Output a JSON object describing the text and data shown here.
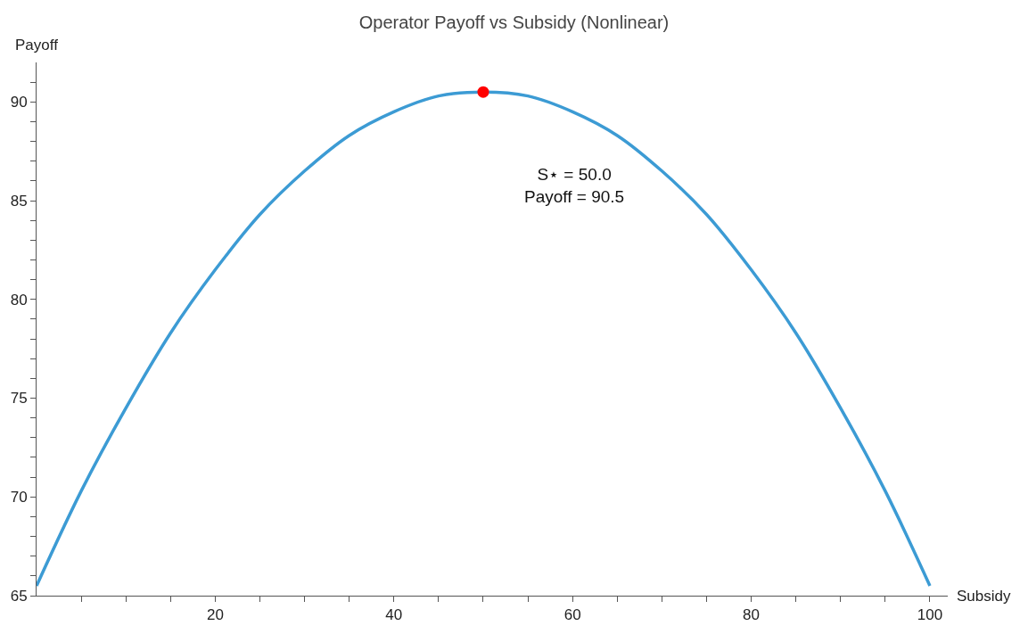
{
  "chart_data": {
    "type": "line",
    "title": "Operator Payoff vs Subsidy (Nonlinear)",
    "xlabel": "Subsidy",
    "ylabel": "Payoff",
    "x": [
      0,
      5,
      10,
      15,
      20,
      25,
      30,
      35,
      40,
      45,
      50,
      55,
      60,
      65,
      70,
      75,
      80,
      85,
      90,
      95,
      100
    ],
    "series": [
      {
        "color": "#3c9bd4",
        "values": [
          65.5,
          70.3,
          74.5,
          78.3,
          81.5,
          84.3,
          86.5,
          88.3,
          89.5,
          90.3,
          90.5,
          90.3,
          89.5,
          88.3,
          86.5,
          84.3,
          81.5,
          78.3,
          74.5,
          70.3,
          65.5
        ]
      },
      {
        "type": "scatter",
        "color": "#ff0000",
        "x": [
          50
        ],
        "values": [
          90.5
        ],
        "marker": "circle"
      }
    ],
    "annotations": [
      "S⋆ = 50.0\nPayoff = 90.5"
    ],
    "xlim": [
      0,
      102
    ],
    "ylim": [
      65,
      92
    ],
    "xticks": [
      {
        "value": 5,
        "label": null
      },
      {
        "value": 10,
        "label": null
      },
      {
        "value": 15,
        "label": null
      },
      20,
      {
        "value": 25,
        "label": null
      },
      {
        "value": 30,
        "label": null
      },
      {
        "value": 35,
        "label": null
      },
      40,
      {
        "value": 45,
        "label": null
      },
      {
        "value": 50,
        "label": null
      },
      {
        "value": 55,
        "label": null
      },
      60,
      {
        "value": 65,
        "label": null
      },
      {
        "value": 70,
        "label": null
      },
      {
        "value": 75,
        "label": null
      },
      80,
      {
        "value": 85,
        "label": null
      },
      {
        "value": 90,
        "label": null
      },
      {
        "value": 95,
        "label": null
      },
      100
    ],
    "yticks": [
      65,
      {
        "value": 66,
        "label": null
      },
      {
        "value": 67,
        "label": null
      },
      {
        "value": 68,
        "label": null
      },
      {
        "value": 69,
        "label": null
      },
      70,
      {
        "value": 71,
        "label": null
      },
      {
        "value": 72,
        "label": null
      },
      {
        "value": 73,
        "label": null
      },
      {
        "value": 74,
        "label": null
      },
      75,
      {
        "value": 76,
        "label": null
      },
      {
        "value": 77,
        "label": null
      },
      {
        "value": 78,
        "label": null
      },
      {
        "value": 79,
        "label": null
      },
      80,
      {
        "value": 81,
        "label": null
      },
      {
        "value": 82,
        "label": null
      },
      {
        "value": 83,
        "label": null
      },
      {
        "value": 84,
        "label": null
      },
      85,
      {
        "value": 86,
        "label": null
      },
      {
        "value": 87,
        "label": null
      },
      {
        "value": 88,
        "label": null
      },
      {
        "value": 89,
        "label": null
      },
      90,
      {
        "value": 91,
        "label": null
      }
    ],
    "legend": false,
    "line_style": "solid",
    "marker": "none"
  }
}
